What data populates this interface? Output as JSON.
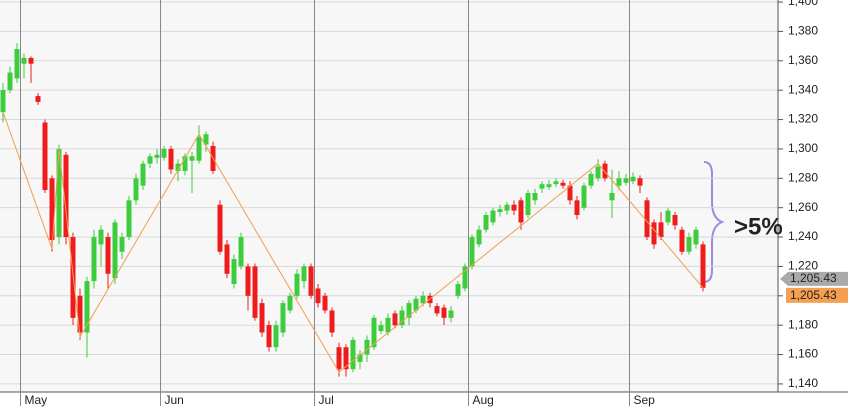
{
  "chart_data": {
    "type": "candlestick",
    "categories": [
      null,
      null,
      null,
      "May",
      null,
      null,
      null,
      null,
      null,
      null,
      null,
      null,
      null,
      null,
      null,
      null,
      null,
      null,
      null,
      null,
      null,
      null,
      null,
      "Jun",
      null,
      null,
      null,
      null,
      null,
      null,
      null,
      null,
      null,
      null,
      null,
      null,
      null,
      null,
      null,
      null,
      null,
      null,
      null,
      null,
      null,
      "Jul",
      null,
      null,
      null,
      null,
      null,
      null,
      null,
      null,
      null,
      null,
      null,
      null,
      null,
      null,
      null,
      null,
      null,
      null,
      null,
      null,
      null,
      "Aug",
      null,
      null,
      null,
      null,
      null,
      null,
      null,
      null,
      null,
      null,
      null,
      null,
      null,
      null,
      null,
      null,
      null,
      null,
      null,
      null,
      null,
      null,
      "Sep",
      null,
      null,
      null,
      null,
      null,
      null,
      null,
      null,
      null,
      null
    ],
    "open": [
      1325,
      1340,
      1348,
      1358,
      1362,
      1336,
      1318,
      1280,
      1240,
      1296,
      1240,
      1200,
      1175,
      1210,
      1235,
      1240,
      1212,
      1230,
      1240,
      1265,
      1275,
      1290,
      1294,
      1294,
      1300,
      1285,
      1285,
      1292,
      1292,
      1303,
      1302,
      1262,
      1235,
      1208,
      1220,
      1220,
      1220,
      1195,
      1180,
      1165,
      1175,
      1190,
      1200,
      1210,
      1220,
      1205,
      1200,
      1190,
      1165,
      1165,
      1150,
      1155,
      1160,
      1165,
      1176,
      1175,
      1188,
      1180,
      1185,
      1190,
      1195,
      1200,
      1193,
      1192,
      1185,
      1200,
      1205,
      1220,
      1235,
      1245,
      1250,
      1257,
      1258,
      1262,
      1265,
      1255,
      1265,
      1273,
      1274,
      1276,
      1277,
      1275,
      1265,
      1260,
      1275,
      1280,
      1290,
      1265,
      1275,
      1277,
      1278,
      1280,
      1265,
      1250,
      1250,
      1250,
      1255,
      1245,
      1230,
      1235,
      1235
    ],
    "high": [
      1345,
      1356,
      1372,
      1365,
      1363,
      1338,
      1320,
      1282,
      1303,
      1298,
      1243,
      1205,
      1213,
      1245,
      1248,
      1243,
      1252,
      1243,
      1268,
      1283,
      1292,
      1297,
      1300,
      1302,
      1302,
      1293,
      1297,
      1298,
      1316,
      1312,
      1305,
      1265,
      1238,
      1228,
      1243,
      1222,
      1222,
      1198,
      1183,
      1183,
      1197,
      1202,
      1218,
      1222,
      1222,
      1208,
      1202,
      1192,
      1168,
      1167,
      1172,
      1163,
      1173,
      1187,
      1183,
      1188,
      1190,
      1193,
      1197,
      1200,
      1203,
      1202,
      1195,
      1194,
      1193,
      1210,
      1222,
      1242,
      1248,
      1257,
      1260,
      1262,
      1264,
      1265,
      1267,
      1272,
      1273,
      1278,
      1279,
      1280,
      1279,
      1278,
      1268,
      1277,
      1285,
      1293,
      1292,
      1286,
      1285,
      1283,
      1284,
      1282,
      1267,
      1252,
      1257,
      1260,
      1257,
      1247,
      1243,
      1247,
      1237
    ],
    "low": [
      1318,
      1338,
      1345,
      1348,
      1345,
      1330,
      1270,
      1230,
      1235,
      1235,
      1180,
      1170,
      1158,
      1205,
      1220,
      1205,
      1208,
      1225,
      1238,
      1262,
      1272,
      1287,
      1290,
      1292,
      1283,
      1278,
      1282,
      1270,
      1290,
      1298,
      1283,
      1228,
      1212,
      1205,
      1218,
      1190,
      1183,
      1172,
      1162,
      1162,
      1172,
      1188,
      1198,
      1205,
      1198,
      1192,
      1188,
      1172,
      1145,
      1145,
      1148,
      1150,
      1155,
      1163,
      1174,
      1173,
      1178,
      1178,
      1180,
      1188,
      1193,
      1192,
      1186,
      1180,
      1182,
      1198,
      1203,
      1218,
      1233,
      1243,
      1248,
      1254,
      1255,
      1255,
      1245,
      1253,
      1262,
      1270,
      1272,
      1274,
      1273,
      1262,
      1252,
      1258,
      1273,
      1278,
      1278,
      1253,
      1272,
      1275,
      1276,
      1270,
      1238,
      1232,
      1238,
      1248,
      1245,
      1228,
      1228,
      1232,
      1203
    ],
    "close": [
      1340,
      1352,
      1368,
      1362,
      1358,
      1332,
      1272,
      1238,
      1300,
      1240,
      1185,
      1175,
      1210,
      1240,
      1245,
      1215,
      1250,
      1240,
      1265,
      1280,
      1290,
      1295,
      1296,
      1300,
      1286,
      1290,
      1295,
      1295,
      1308,
      1310,
      1285,
      1230,
      1215,
      1225,
      1240,
      1200,
      1185,
      1175,
      1165,
      1180,
      1195,
      1200,
      1215,
      1220,
      1200,
      1195,
      1190,
      1175,
      1150,
      1150,
      1170,
      1160,
      1170,
      1185,
      1180,
      1185,
      1180,
      1190,
      1195,
      1198,
      1200,
      1195,
      1188,
      1185,
      1190,
      1208,
      1220,
      1240,
      1245,
      1255,
      1258,
      1259,
      1262,
      1258,
      1250,
      1270,
      1270,
      1276,
      1276,
      1278,
      1275,
      1265,
      1255,
      1275,
      1283,
      1288,
      1280,
      1270,
      1280,
      1280,
      1281,
      1275,
      1240,
      1235,
      1240,
      1258,
      1248,
      1230,
      1240,
      1245,
      1205.43
    ],
    "up_color": "#3ccc3c",
    "down_color": "#ee1c1c",
    "zigzag": {
      "color": "#f0a050",
      "x": [
        0,
        7,
        8,
        11,
        28,
        48,
        85,
        100
      ],
      "values": [
        1325,
        1232,
        1300,
        1172,
        1310,
        1148,
        1290,
        1205.43
      ]
    },
    "ylim": [
      1134.5,
      1401.4
    ],
    "yticks": [
      {
        "value": 1140,
        "label": "1,140"
      },
      {
        "value": 1160,
        "label": "1,160"
      },
      {
        "value": 1180,
        "label": "1,180"
      },
      {
        "value": 1200,
        "label": "1,200"
      },
      {
        "value": 1220,
        "label": "1,220"
      },
      {
        "value": 1240,
        "label": "1,240"
      },
      {
        "value": 1260,
        "label": "1,260"
      },
      {
        "value": 1280,
        "label": "1,280"
      },
      {
        "value": 1300,
        "label": "1,300"
      },
      {
        "value": 1320,
        "label": "1,320"
      },
      {
        "value": 1340,
        "label": "1,340"
      },
      {
        "value": 1360,
        "label": "1,360"
      },
      {
        "value": 1380,
        "label": "1,380"
      },
      {
        "value": 1400,
        "label": "1,400"
      }
    ],
    "last_value": {
      "value": 1205.43,
      "label": "1,205.43"
    },
    "annotation": ">5%",
    "grid": true
  }
}
